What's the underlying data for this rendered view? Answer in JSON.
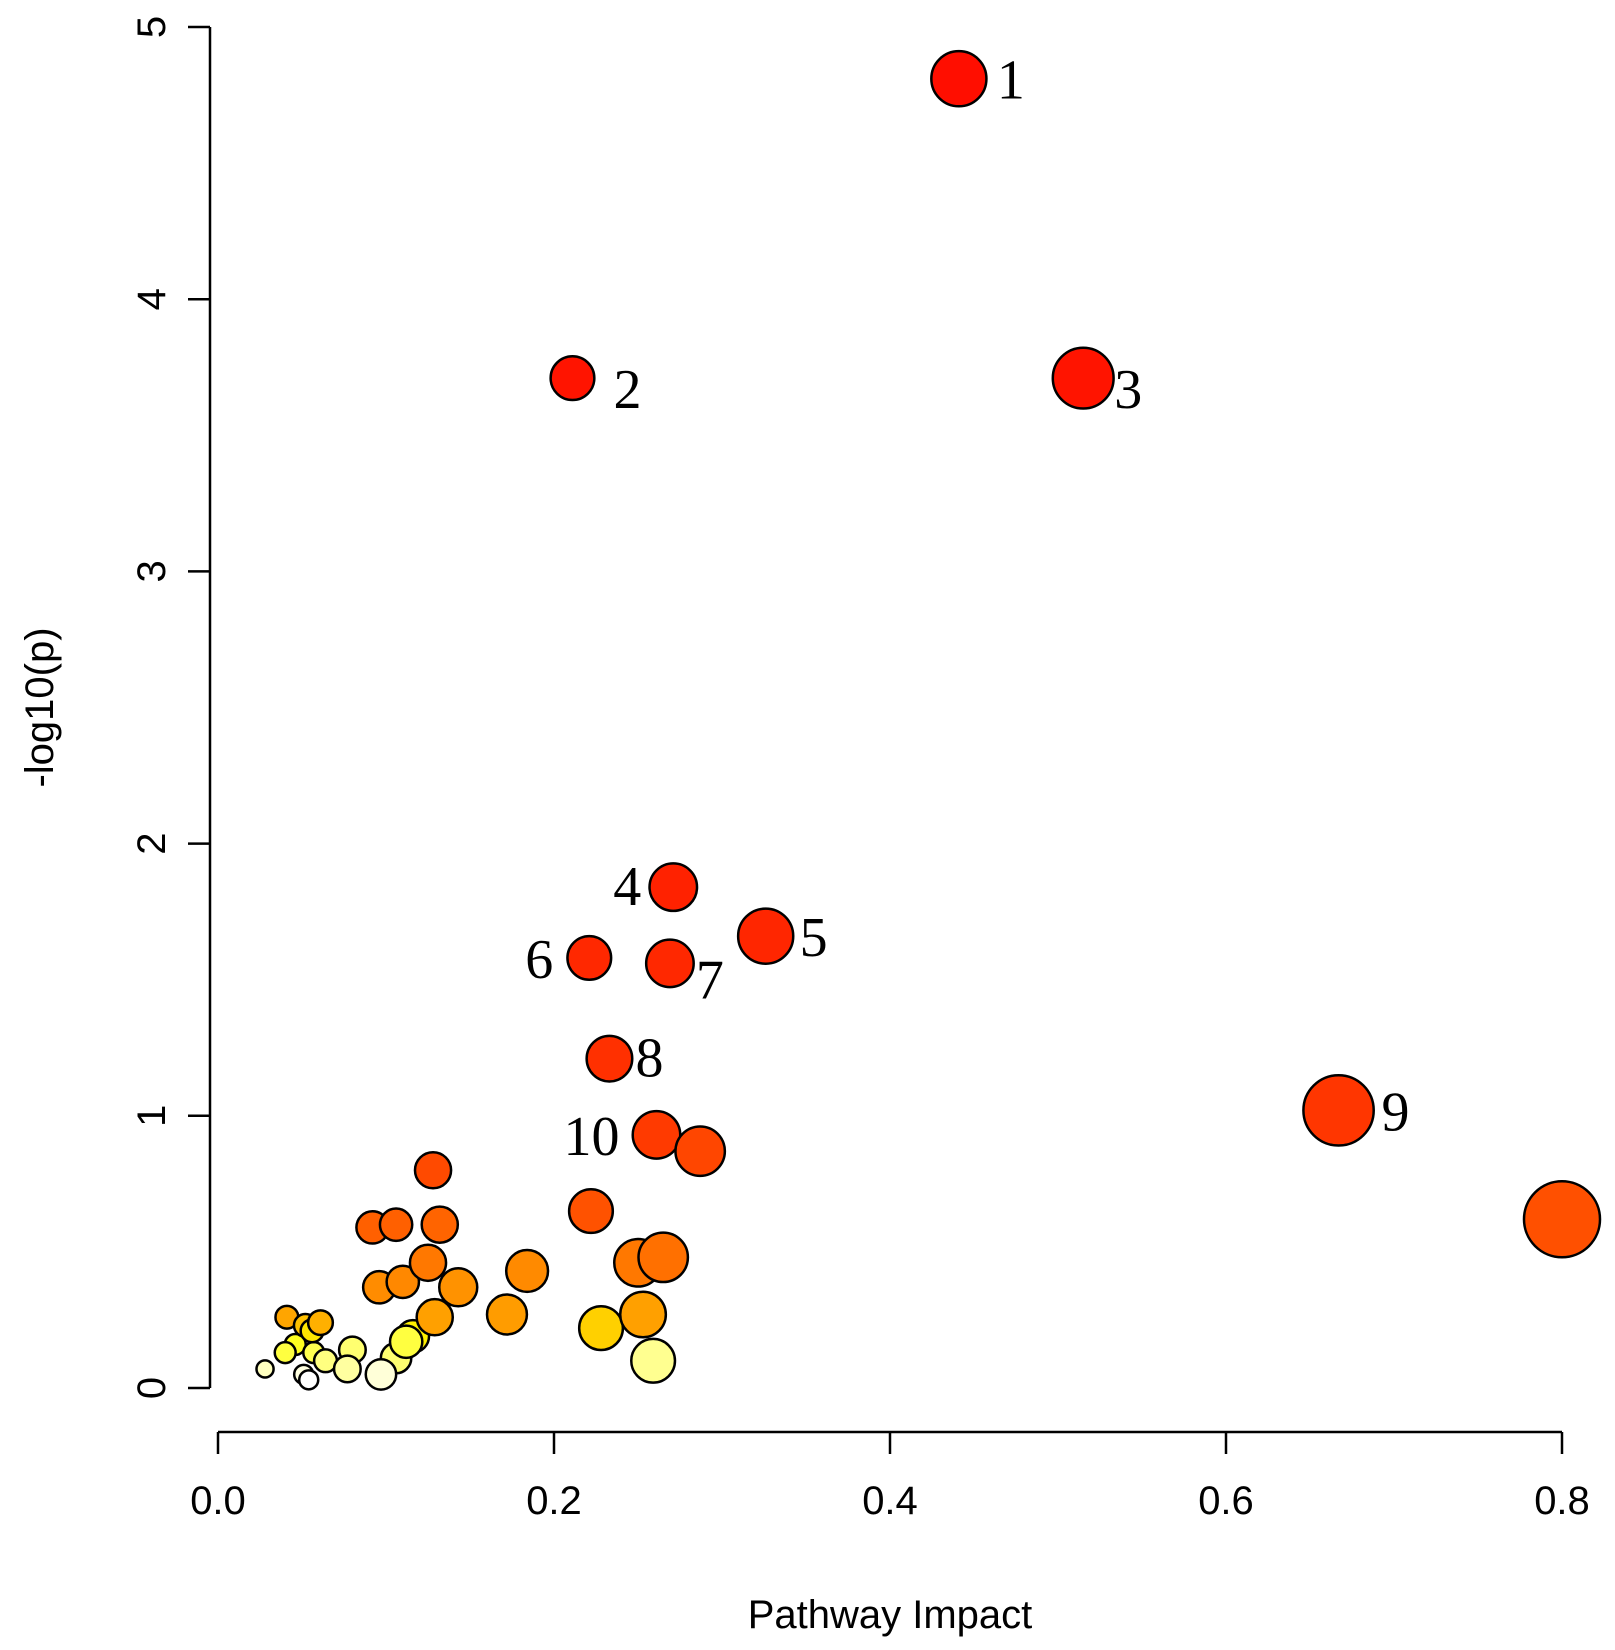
{
  "chart_data": {
    "type": "scatter",
    "title": "",
    "xlabel": "Pathway Impact",
    "ylabel": "-log10(p)",
    "xlim": [
      0.0,
      0.8
    ],
    "ylim": [
      0,
      5
    ],
    "x_ticks": [
      "0.0",
      "0.2",
      "0.4",
      "0.6",
      "0.8"
    ],
    "y_ticks": [
      "0",
      "1",
      "2",
      "3",
      "4",
      "5"
    ],
    "grid": false,
    "legend": "none",
    "color_scale": {
      "low": "#ffffff",
      "mid": "#ffd200",
      "high": "#ff0000"
    },
    "points": [
      {
        "x": 0.441,
        "y": 4.81,
        "size": 1.45,
        "color": "#ff0e00",
        "label": "1"
      },
      {
        "x": 0.211,
        "y": 3.71,
        "size": 1.15,
        "color": "#ff1400",
        "label": "2"
      },
      {
        "x": 0.515,
        "y": 3.71,
        "size": 1.6,
        "color": "#ff1400",
        "label": "3"
      },
      {
        "x": 0.271,
        "y": 1.84,
        "size": 1.25,
        "color": "#ff2200",
        "label": "4"
      },
      {
        "x": 0.326,
        "y": 1.66,
        "size": 1.45,
        "color": "#ff2600",
        "label": "5"
      },
      {
        "x": 0.221,
        "y": 1.58,
        "size": 1.15,
        "color": "#ff2800",
        "label": "6"
      },
      {
        "x": 0.269,
        "y": 1.56,
        "size": 1.25,
        "color": "#ff2800",
        "label": "7"
      },
      {
        "x": 0.233,
        "y": 1.21,
        "size": 1.2,
        "color": "#ff3000",
        "label": "8"
      },
      {
        "x": 0.667,
        "y": 1.02,
        "size": 1.85,
        "color": "#ff3600",
        "label": "9"
      },
      {
        "x": 0.261,
        "y": 0.93,
        "size": 1.25,
        "color": "#ff3a00",
        "label": "10"
      },
      {
        "x": 0.8,
        "y": 0.62,
        "size": 2.0,
        "color": "#ff5000",
        "label": ""
      },
      {
        "x": 0.287,
        "y": 0.87,
        "size": 1.3,
        "color": "#ff4600",
        "label": ""
      },
      {
        "x": 0.128,
        "y": 0.8,
        "size": 0.95,
        "color": "#ff4a00",
        "label": ""
      },
      {
        "x": 0.222,
        "y": 0.65,
        "size": 1.15,
        "color": "#ff5200",
        "label": ""
      },
      {
        "x": 0.092,
        "y": 0.59,
        "size": 0.85,
        "color": "#ff6000",
        "label": ""
      },
      {
        "x": 0.106,
        "y": 0.6,
        "size": 0.85,
        "color": "#ff6000",
        "label": ""
      },
      {
        "x": 0.132,
        "y": 0.6,
        "size": 0.95,
        "color": "#ff6400",
        "label": ""
      },
      {
        "x": 0.265,
        "y": 0.48,
        "size": 1.3,
        "color": "#ff7000",
        "label": ""
      },
      {
        "x": 0.25,
        "y": 0.46,
        "size": 1.25,
        "color": "#ff7800",
        "label": ""
      },
      {
        "x": 0.125,
        "y": 0.46,
        "size": 0.95,
        "color": "#ff7800",
        "label": ""
      },
      {
        "x": 0.184,
        "y": 0.43,
        "size": 1.1,
        "color": "#ff8a00",
        "label": ""
      },
      {
        "x": 0.096,
        "y": 0.37,
        "size": 0.85,
        "color": "#ff8c00",
        "label": ""
      },
      {
        "x": 0.11,
        "y": 0.39,
        "size": 0.85,
        "color": "#ff8800",
        "label": ""
      },
      {
        "x": 0.143,
        "y": 0.37,
        "size": 1.0,
        "color": "#ff9200",
        "label": ""
      },
      {
        "x": 0.172,
        "y": 0.27,
        "size": 1.05,
        "color": "#ff9c00",
        "label": ""
      },
      {
        "x": 0.129,
        "y": 0.26,
        "size": 0.95,
        "color": "#ffa000",
        "label": ""
      },
      {
        "x": 0.253,
        "y": 0.27,
        "size": 1.2,
        "color": "#ffa000",
        "label": ""
      },
      {
        "x": 0.041,
        "y": 0.26,
        "size": 0.6,
        "color": "#ffa500",
        "label": ""
      },
      {
        "x": 0.061,
        "y": 0.24,
        "size": 0.65,
        "color": "#ffb000",
        "label": ""
      },
      {
        "x": 0.052,
        "y": 0.23,
        "size": 0.6,
        "color": "#ffc000",
        "label": ""
      },
      {
        "x": 0.228,
        "y": 0.22,
        "size": 1.15,
        "color": "#ffd000",
        "label": ""
      },
      {
        "x": 0.056,
        "y": 0.21,
        "size": 0.6,
        "color": "#ffe600",
        "label": ""
      },
      {
        "x": 0.116,
        "y": 0.19,
        "size": 0.85,
        "color": "#fff000",
        "label": ""
      },
      {
        "x": 0.112,
        "y": 0.17,
        "size": 0.85,
        "color": "#ffff40",
        "label": ""
      },
      {
        "x": 0.046,
        "y": 0.16,
        "size": 0.55,
        "color": "#ffff20",
        "label": ""
      },
      {
        "x": 0.04,
        "y": 0.13,
        "size": 0.55,
        "color": "#ffff40",
        "label": ""
      },
      {
        "x": 0.057,
        "y": 0.13,
        "size": 0.55,
        "color": "#ffff50",
        "label": ""
      },
      {
        "x": 0.08,
        "y": 0.14,
        "size": 0.7,
        "color": "#ffff70",
        "label": ""
      },
      {
        "x": 0.106,
        "y": 0.11,
        "size": 0.8,
        "color": "#ffff70",
        "label": ""
      },
      {
        "x": 0.064,
        "y": 0.1,
        "size": 0.6,
        "color": "#ffff80",
        "label": ""
      },
      {
        "x": 0.259,
        "y": 0.1,
        "size": 1.15,
        "color": "#ffff90",
        "label": ""
      },
      {
        "x": 0.077,
        "y": 0.07,
        "size": 0.7,
        "color": "#ffffa0",
        "label": ""
      },
      {
        "x": 0.028,
        "y": 0.07,
        "size": 0.45,
        "color": "#ffffc0",
        "label": ""
      },
      {
        "x": 0.097,
        "y": 0.05,
        "size": 0.8,
        "color": "#ffffd8",
        "label": ""
      },
      {
        "x": 0.051,
        "y": 0.05,
        "size": 0.5,
        "color": "#ffffe0",
        "label": ""
      },
      {
        "x": 0.054,
        "y": 0.03,
        "size": 0.5,
        "color": "#ffffff",
        "label": ""
      }
    ]
  }
}
